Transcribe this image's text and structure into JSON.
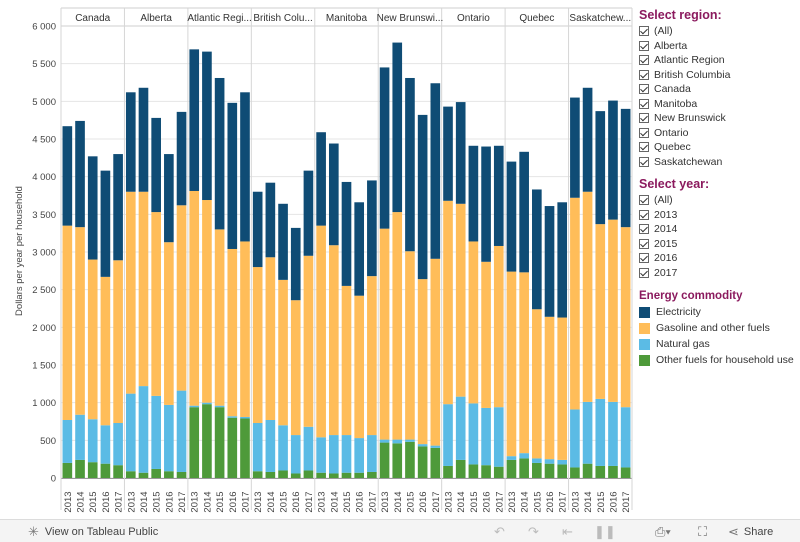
{
  "chart_data": {
    "type": "bar",
    "stacked": true,
    "ylabel": "Dollars per year per household",
    "ylim": [
      0,
      6000
    ],
    "yticks": [
      0,
      500,
      1000,
      1500,
      2000,
      2500,
      3000,
      3500,
      4000,
      4500,
      5000,
      5500,
      6000
    ],
    "ytick_labels": [
      "0",
      "500",
      "1 000",
      "1 500",
      "2 000",
      "2 500",
      "3 000",
      "3 500",
      "4 000",
      "4 500",
      "5 000",
      "5 500",
      "6 000"
    ],
    "grid": true,
    "years": [
      "2013",
      "2014",
      "2015",
      "2016",
      "2017"
    ],
    "panels": [
      {
        "header": "Canada",
        "other": [
          200,
          240,
          210,
          190,
          170
        ],
        "gas": [
          570,
          600,
          570,
          510,
          560
        ],
        "gasoline": [
          2580,
          2490,
          2120,
          1970,
          2160
        ],
        "electricity": [
          1320,
          1410,
          1370,
          1410,
          1410
        ]
      },
      {
        "header": "Alberta",
        "other": [
          90,
          70,
          120,
          90,
          80
        ],
        "gas": [
          1030,
          1150,
          970,
          880,
          1080
        ],
        "gasoline": [
          2680,
          2580,
          2440,
          2160,
          2460
        ],
        "electricity": [
          1320,
          1380,
          1250,
          1170,
          1240
        ]
      },
      {
        "header": "Atlantic Regi...",
        "other": [
          940,
          980,
          940,
          800,
          790
        ],
        "gas": [
          20,
          20,
          20,
          20,
          20
        ],
        "gasoline": [
          2850,
          2690,
          2340,
          2220,
          2330
        ],
        "electricity": [
          1880,
          1970,
          2010,
          1940,
          1980
        ]
      },
      {
        "header": "British Colu...",
        "other": [
          90,
          80,
          100,
          60,
          100
        ],
        "gas": [
          640,
          690,
          600,
          510,
          580
        ],
        "gasoline": [
          2070,
          2160,
          1930,
          1790,
          2270
        ],
        "electricity": [
          1000,
          990,
          1010,
          960,
          1130
        ]
      },
      {
        "header": "Manitoba",
        "other": [
          70,
          60,
          70,
          70,
          80
        ],
        "gas": [
          470,
          510,
          500,
          460,
          490
        ],
        "gasoline": [
          2810,
          2520,
          1980,
          1890,
          2110
        ],
        "electricity": [
          1240,
          1350,
          1380,
          1240,
          1270
        ]
      },
      {
        "header": "New Brunswi...",
        "other": [
          470,
          460,
          480,
          420,
          400
        ],
        "gas": [
          40,
          50,
          30,
          30,
          30
        ],
        "gasoline": [
          2800,
          3020,
          2500,
          2190,
          2480
        ],
        "electricity": [
          2140,
          2250,
          2300,
          2180,
          2330
        ]
      },
      {
        "header": "Ontario",
        "other": [
          160,
          240,
          180,
          170,
          150
        ],
        "gas": [
          820,
          840,
          810,
          760,
          790
        ],
        "gasoline": [
          2700,
          2560,
          2150,
          1940,
          2140
        ],
        "electricity": [
          1250,
          1350,
          1270,
          1530,
          1330
        ]
      },
      {
        "header": "Quebec",
        "other": [
          240,
          260,
          200,
          190,
          180
        ],
        "gas": [
          50,
          70,
          60,
          60,
          60
        ],
        "gasoline": [
          2450,
          2400,
          1980,
          1890,
          1890
        ],
        "electricity": [
          1460,
          1600,
          1590,
          1470,
          1530
        ]
      },
      {
        "header": "Saskatchew...",
        "other": [
          140,
          190,
          160,
          160,
          140
        ],
        "gas": [
          770,
          820,
          890,
          850,
          800
        ],
        "gasoline": [
          2810,
          2790,
          2320,
          2420,
          2390
        ],
        "electricity": [
          1330,
          1380,
          1500,
          1580,
          1570
        ]
      }
    ]
  },
  "legend": {
    "title": "Energy commodity",
    "items": [
      {
        "label": "Electricity",
        "color": "#0f4c75"
      },
      {
        "label": "Gasoline and other fuels",
        "color": "#ffbd59"
      },
      {
        "label": "Natural gas",
        "color": "#5bbbe5"
      },
      {
        "label": "Other fuels for household use",
        "color": "#4e9a3a"
      }
    ]
  },
  "filters": {
    "region": {
      "title": "Select region:",
      "options": [
        "(All)",
        "Alberta",
        "Atlantic Region",
        "British Columbia",
        "Canada",
        "Manitoba",
        "New Brunswick",
        "Ontario",
        "Quebec",
        "Saskatchewan"
      ]
    },
    "year": {
      "title": "Select year:",
      "options": [
        "(All)",
        "2013",
        "2014",
        "2015",
        "2016",
        "2017"
      ]
    }
  },
  "toolbar": {
    "view_label": "View on Tableau Public",
    "share_label": "Share",
    "icons": [
      "tableau-icon",
      "undo-icon",
      "redo-icon",
      "revert-icon",
      "pause-icon",
      "download-icon",
      "fullscreen-icon",
      "share-icon"
    ]
  }
}
